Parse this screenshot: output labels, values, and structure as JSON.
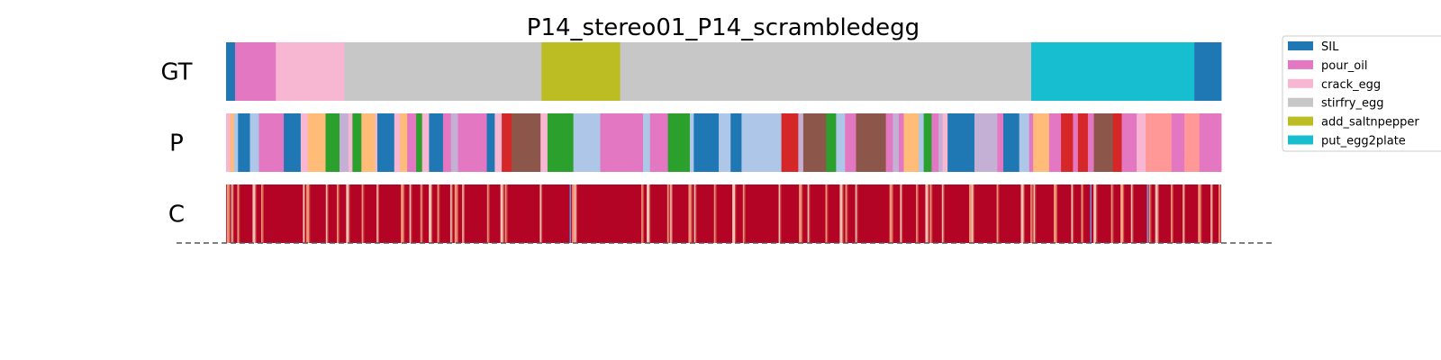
{
  "chart_data": {
    "type": "segmentation",
    "title": "P14_stereo01_P14_scrambledegg",
    "x_range": [
      0,
      1
    ],
    "rows": [
      {
        "label": "GT",
        "segments": [
          {
            "start": 0.0,
            "end": 0.009,
            "class": "SIL"
          },
          {
            "start": 0.009,
            "end": 0.05,
            "class": "pour_oil"
          },
          {
            "start": 0.05,
            "end": 0.119,
            "class": "crack_egg"
          },
          {
            "start": 0.119,
            "end": 0.317,
            "class": "stirfry_egg"
          },
          {
            "start": 0.317,
            "end": 0.396,
            "class": "add_saltnpepper"
          },
          {
            "start": 0.396,
            "end": 0.809,
            "class": "stirfry_egg"
          },
          {
            "start": 0.809,
            "end": 0.973,
            "class": "put_egg2plate"
          },
          {
            "start": 0.973,
            "end": 1.0,
            "class": "SIL"
          }
        ]
      },
      {
        "label": "P",
        "segments": [
          {
            "start": 0.0,
            "end": 0.004,
            "class": "pink"
          },
          {
            "start": 0.004,
            "end": 0.008,
            "class": "orange"
          },
          {
            "start": 0.008,
            "end": 0.012,
            "class": "light_blue"
          },
          {
            "start": 0.012,
            "end": 0.024,
            "class": "SIL"
          },
          {
            "start": 0.024,
            "end": 0.033,
            "class": "light_blue"
          },
          {
            "start": 0.033,
            "end": 0.058,
            "class": "pour_oil"
          },
          {
            "start": 0.058,
            "end": 0.075,
            "class": "SIL"
          },
          {
            "start": 0.075,
            "end": 0.082,
            "class": "pink"
          },
          {
            "start": 0.082,
            "end": 0.1,
            "class": "orange"
          },
          {
            "start": 0.1,
            "end": 0.104,
            "class": "green"
          },
          {
            "start": 0.104,
            "end": 0.114,
            "class": "green"
          },
          {
            "start": 0.114,
            "end": 0.123,
            "class": "lavender"
          },
          {
            "start": 0.123,
            "end": 0.127,
            "class": "pink"
          },
          {
            "start": 0.127,
            "end": 0.136,
            "class": "green"
          },
          {
            "start": 0.136,
            "end": 0.15,
            "class": "orange"
          },
          {
            "start": 0.15,
            "end": 0.152,
            "class": "pink"
          },
          {
            "start": 0.152,
            "end": 0.169,
            "class": "SIL"
          },
          {
            "start": 0.169,
            "end": 0.175,
            "class": "pink"
          },
          {
            "start": 0.175,
            "end": 0.182,
            "class": "orange"
          },
          {
            "start": 0.182,
            "end": 0.191,
            "class": "pour_oil"
          },
          {
            "start": 0.191,
            "end": 0.197,
            "class": "green"
          },
          {
            "start": 0.197,
            "end": 0.204,
            "class": "pink"
          },
          {
            "start": 0.204,
            "end": 0.218,
            "class": "SIL"
          },
          {
            "start": 0.218,
            "end": 0.226,
            "class": "pour_oil"
          },
          {
            "start": 0.226,
            "end": 0.233,
            "class": "lavender"
          },
          {
            "start": 0.233,
            "end": 0.262,
            "class": "pour_oil"
          },
          {
            "start": 0.262,
            "end": 0.27,
            "class": "SIL"
          },
          {
            "start": 0.27,
            "end": 0.277,
            "class": "pink"
          },
          {
            "start": 0.277,
            "end": 0.287,
            "class": "red"
          },
          {
            "start": 0.287,
            "end": 0.316,
            "class": "brown"
          },
          {
            "start": 0.316,
            "end": 0.323,
            "class": "pink"
          },
          {
            "start": 0.323,
            "end": 0.349,
            "class": "green"
          },
          {
            "start": 0.349,
            "end": 0.376,
            "class": "light_blue"
          },
          {
            "start": 0.376,
            "end": 0.419,
            "class": "pour_oil"
          },
          {
            "start": 0.419,
            "end": 0.426,
            "class": "light_blue"
          },
          {
            "start": 0.426,
            "end": 0.444,
            "class": "pour_oil"
          },
          {
            "start": 0.444,
            "end": 0.466,
            "class": "green"
          },
          {
            "start": 0.466,
            "end": 0.47,
            "class": "light_blue"
          },
          {
            "start": 0.47,
            "end": 0.495,
            "class": "SIL"
          },
          {
            "start": 0.495,
            "end": 0.507,
            "class": "light_blue"
          },
          {
            "start": 0.507,
            "end": 0.518,
            "class": "SIL"
          },
          {
            "start": 0.518,
            "end": 0.558,
            "class": "light_blue"
          },
          {
            "start": 0.558,
            "end": 0.575,
            "class": "red"
          },
          {
            "start": 0.575,
            "end": 0.58,
            "class": "lavender"
          },
          {
            "start": 0.58,
            "end": 0.603,
            "class": "brown"
          },
          {
            "start": 0.603,
            "end": 0.613,
            "class": "green"
          },
          {
            "start": 0.613,
            "end": 0.622,
            "class": "light_blue"
          },
          {
            "start": 0.622,
            "end": 0.633,
            "class": "pour_oil"
          },
          {
            "start": 0.633,
            "end": 0.663,
            "class": "brown"
          },
          {
            "start": 0.663,
            "end": 0.67,
            "class": "pour_oil"
          },
          {
            "start": 0.67,
            "end": 0.676,
            "class": "lavender"
          },
          {
            "start": 0.676,
            "end": 0.681,
            "class": "pour_oil"
          },
          {
            "start": 0.681,
            "end": 0.696,
            "class": "orange"
          },
          {
            "start": 0.696,
            "end": 0.701,
            "class": "light_blue"
          },
          {
            "start": 0.701,
            "end": 0.709,
            "class": "green"
          },
          {
            "start": 0.709,
            "end": 0.716,
            "class": "pour_oil"
          },
          {
            "start": 0.716,
            "end": 0.72,
            "class": "lavender"
          },
          {
            "start": 0.72,
            "end": 0.725,
            "class": "pink"
          },
          {
            "start": 0.725,
            "end": 0.752,
            "class": "SIL"
          },
          {
            "start": 0.752,
            "end": 0.775,
            "class": "lavender"
          },
          {
            "start": 0.775,
            "end": 0.781,
            "class": "pour_oil"
          },
          {
            "start": 0.781,
            "end": 0.797,
            "class": "SIL"
          },
          {
            "start": 0.797,
            "end": 0.807,
            "class": "light_blue"
          },
          {
            "start": 0.807,
            "end": 0.811,
            "class": "pour_oil"
          },
          {
            "start": 0.811,
            "end": 0.827,
            "class": "orange"
          },
          {
            "start": 0.827,
            "end": 0.839,
            "class": "pour_oil"
          },
          {
            "start": 0.839,
            "end": 0.851,
            "class": "red"
          },
          {
            "start": 0.851,
            "end": 0.856,
            "class": "pour_oil"
          },
          {
            "start": 0.856,
            "end": 0.866,
            "class": "red"
          },
          {
            "start": 0.866,
            "end": 0.872,
            "class": "pour_oil"
          },
          {
            "start": 0.872,
            "end": 0.891,
            "class": "brown"
          },
          {
            "start": 0.891,
            "end": 0.9,
            "class": "red"
          },
          {
            "start": 0.9,
            "end": 0.915,
            "class": "pour_oil"
          },
          {
            "start": 0.915,
            "end": 0.924,
            "class": "pink"
          },
          {
            "start": 0.924,
            "end": 0.95,
            "class": "salmon"
          },
          {
            "start": 0.95,
            "end": 0.963,
            "class": "pour_oil"
          },
          {
            "start": 0.963,
            "end": 0.978,
            "class": "salmon"
          },
          {
            "start": 0.978,
            "end": 0.987,
            "class": "pour_oil"
          },
          {
            "start": 0.987,
            "end": 1.0,
            "class": "pour_oil"
          }
        ]
      },
      {
        "label": "C",
        "type": "confidence",
        "base_color": "#b40426",
        "dips": [
          0.002,
          0.006,
          0.012,
          0.028,
          0.036,
          0.078,
          0.082,
          0.101,
          0.112,
          0.122,
          0.137,
          0.152,
          0.177,
          0.185,
          0.196,
          0.205,
          0.213,
          0.226,
          0.231,
          0.238,
          0.263,
          0.277,
          0.281,
          0.316,
          0.349,
          0.351,
          0.418,
          0.424,
          0.444,
          0.447,
          0.466,
          0.471,
          0.491,
          0.51,
          0.52,
          0.556,
          0.577,
          0.585,
          0.603,
          0.618,
          0.623,
          0.633,
          0.668,
          0.678,
          0.694,
          0.704,
          0.708,
          0.72,
          0.748,
          0.75,
          0.775,
          0.8,
          0.809,
          0.812,
          0.833,
          0.85,
          0.86,
          0.873,
          0.89,
          0.9,
          0.9,
          0.91,
          0.928,
          0.935,
          0.95,
          0.962,
          0.978,
          0.99,
          0.998
        ],
        "blue_marks": [
          0.346,
          0.869,
          0.926
        ]
      }
    ],
    "legend": {
      "placement": "top-right",
      "entries": [
        {
          "label": "SIL",
          "color": "#1f77b4"
        },
        {
          "label": "pour_oil",
          "color": "#e377c2"
        },
        {
          "label": "crack_egg",
          "color": "#f7b6d2"
        },
        {
          "label": "stirfry_egg",
          "color": "#c7c7c7"
        },
        {
          "label": "add_saltnpepper",
          "color": "#bcbd22"
        },
        {
          "label": "put_egg2plate",
          "color": "#17becf"
        }
      ]
    },
    "palette": {
      "SIL": "#1f77b4",
      "pour_oil": "#e377c2",
      "crack_egg": "#f7b6d2",
      "stirfry_egg": "#c7c7c7",
      "add_saltnpepper": "#bcbd22",
      "put_egg2plate": "#17becf",
      "pink": "#f7b6d2",
      "orange": "#ffbb78",
      "light_blue": "#aec7e8",
      "green": "#2ca02c",
      "lavender": "#c5b0d5",
      "red": "#d62728",
      "brown": "#8c564b",
      "salmon": "#ff9896"
    }
  }
}
